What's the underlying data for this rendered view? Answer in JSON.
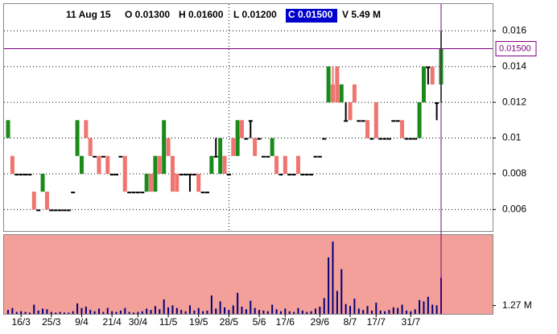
{
  "header": {
    "date": "11 Aug 15",
    "open": "O 0.01300",
    "high": "H 0.01600",
    "low": "L 0.01200",
    "close": "C 0.01500",
    "volume": "V 5.49 M"
  },
  "chart_data": {
    "type": "candlestick",
    "ylim": [
      0.0048,
      0.0175
    ],
    "yticks": [
      0.016,
      0.014,
      0.012,
      0.01,
      0.008,
      0.006
    ],
    "crosshair": {
      "value": 0.015,
      "label": "0.01500"
    },
    "grid": true,
    "up_color": "#1a8a1a",
    "down_color": "#f07470",
    "flat_color": "#000000",
    "xticks": [
      {
        "value": 3,
        "label": "16/3"
      },
      {
        "value": 10,
        "label": "25/3"
      },
      {
        "value": 17,
        "label": "9/4"
      },
      {
        "value": 24,
        "label": "21/4"
      },
      {
        "value": 30,
        "label": "30/4"
      },
      {
        "value": 37,
        "label": "11/5"
      },
      {
        "value": 44,
        "label": "19/5"
      },
      {
        "value": 51,
        "label": "28/5"
      },
      {
        "value": 58,
        "label": "5/6"
      },
      {
        "value": 64,
        "label": "17/6"
      },
      {
        "value": 72,
        "label": "29/6"
      },
      {
        "value": 79,
        "label": "8/7"
      },
      {
        "value": 85,
        "label": "17/7"
      },
      {
        "value": 93,
        "label": "31/7"
      }
    ],
    "open": [
      0.01,
      0.009,
      0.008,
      0.008,
      0.008,
      0.008,
      0.007,
      0.006,
      0.007,
      0.007,
      0.006,
      0.006,
      0.006,
      0.006,
      0.006,
      0.007,
      0.009,
      0.008,
      0.011,
      0.01,
      0.009,
      0.009,
      0.009,
      0.009,
      0.008,
      0.008,
      0.009,
      0.009,
      0.007,
      0.007,
      0.007,
      0.007,
      0.007,
      0.008,
      0.007,
      0.009,
      0.008,
      0.01,
      0.009,
      0.008,
      0.008,
      0.008,
      0.008,
      0.008,
      0.008,
      0.007,
      0.007,
      0.008,
      0.009,
      0.008,
      0.009,
      0.008,
      0.01,
      0.009,
      0.011,
      0.01,
      0.011,
      0.01,
      0.01,
      0.009,
      0.009,
      0.009,
      0.009,
      0.008,
      0.009,
      0.008,
      0.008,
      0.009,
      0.008,
      0.008,
      0.008,
      0.009,
      0.009,
      0.01,
      0.012,
      0.013,
      0.014,
      0.012,
      0.011,
      0.012,
      0.013,
      0.011,
      0.011,
      0.011,
      0.01,
      0.012,
      0.01,
      0.01,
      0.01,
      0.011,
      0.011,
      0.011,
      0.01,
      0.01,
      0.01,
      0.01,
      0.012,
      0.014,
      0.014,
      0.012,
      0.013
    ],
    "high": [
      0.011,
      0.009,
      0.008,
      0.008,
      0.008,
      0.008,
      0.007,
      0.006,
      0.008,
      0.007,
      0.006,
      0.006,
      0.006,
      0.006,
      0.006,
      0.007,
      0.011,
      0.009,
      0.011,
      0.01,
      0.009,
      0.009,
      0.009,
      0.009,
      0.008,
      0.008,
      0.009,
      0.009,
      0.007,
      0.007,
      0.007,
      0.007,
      0.008,
      0.008,
      0.009,
      0.009,
      0.011,
      0.01,
      0.009,
      0.008,
      0.008,
      0.008,
      0.008,
      0.008,
      0.008,
      0.007,
      0.007,
      0.009,
      0.01,
      0.01,
      0.009,
      0.008,
      0.01,
      0.011,
      0.011,
      0.01,
      0.011,
      0.01,
      0.01,
      0.009,
      0.009,
      0.01,
      0.009,
      0.008,
      0.009,
      0.008,
      0.008,
      0.009,
      0.008,
      0.008,
      0.008,
      0.009,
      0.009,
      0.01,
      0.014,
      0.014,
      0.014,
      0.013,
      0.012,
      0.012,
      0.013,
      0.011,
      0.011,
      0.011,
      0.01,
      0.012,
      0.01,
      0.01,
      0.01,
      0.011,
      0.011,
      0.011,
      0.01,
      0.01,
      0.01,
      0.012,
      0.014,
      0.014,
      0.014,
      0.012,
      0.016
    ],
    "low": [
      0.01,
      0.008,
      0.008,
      0.008,
      0.008,
      0.008,
      0.006,
      0.006,
      0.007,
      0.006,
      0.006,
      0.006,
      0.006,
      0.006,
      0.006,
      0.007,
      0.009,
      0.008,
      0.01,
      0.009,
      0.009,
      0.008,
      0.009,
      0.008,
      0.008,
      0.008,
      0.009,
      0.007,
      0.007,
      0.007,
      0.007,
      0.007,
      0.007,
      0.007,
      0.007,
      0.008,
      0.008,
      0.009,
      0.007,
      0.007,
      0.008,
      0.008,
      0.007,
      0.008,
      0.007,
      0.007,
      0.007,
      0.008,
      0.009,
      0.008,
      0.008,
      0.008,
      0.009,
      0.009,
      0.01,
      0.01,
      0.01,
      0.009,
      0.01,
      0.009,
      0.009,
      0.009,
      0.008,
      0.008,
      0.008,
      0.008,
      0.008,
      0.008,
      0.008,
      0.008,
      0.008,
      0.009,
      0.009,
      0.01,
      0.012,
      0.012,
      0.012,
      0.012,
      0.011,
      0.011,
      0.012,
      0.011,
      0.011,
      0.01,
      0.01,
      0.01,
      0.01,
      0.01,
      0.01,
      0.011,
      0.011,
      0.01,
      0.01,
      0.01,
      0.01,
      0.01,
      0.012,
      0.013,
      0.013,
      0.011,
      0.012
    ],
    "close": [
      0.011,
      0.008,
      0.008,
      0.008,
      0.008,
      0.008,
      0.006,
      0.006,
      0.008,
      0.006,
      0.006,
      0.006,
      0.006,
      0.006,
      0.006,
      0.007,
      0.011,
      0.009,
      0.01,
      0.009,
      0.009,
      0.008,
      0.009,
      0.008,
      0.008,
      0.008,
      0.009,
      0.007,
      0.007,
      0.007,
      0.007,
      0.007,
      0.008,
      0.007,
      0.009,
      0.008,
      0.011,
      0.009,
      0.007,
      0.007,
      0.008,
      0.008,
      0.008,
      0.008,
      0.007,
      0.007,
      0.007,
      0.009,
      0.009,
      0.01,
      0.008,
      0.008,
      0.009,
      0.011,
      0.01,
      0.01,
      0.011,
      0.009,
      0.01,
      0.009,
      0.009,
      0.01,
      0.008,
      0.008,
      0.008,
      0.008,
      0.008,
      0.008,
      0.008,
      0.008,
      0.008,
      0.009,
      0.009,
      0.01,
      0.014,
      0.012,
      0.012,
      0.013,
      0.011,
      0.011,
      0.012,
      0.011,
      0.011,
      0.01,
      0.01,
      0.01,
      0.01,
      0.01,
      0.01,
      0.011,
      0.011,
      0.01,
      0.01,
      0.01,
      0.01,
      0.012,
      0.014,
      0.014,
      0.013,
      0.012,
      0.015
    ],
    "volume": {
      "name": "volume",
      "color": "#00007a",
      "ylim": [
        0,
        12
      ],
      "yticks": [
        {
          "value": 1.27,
          "label": "1.27 M"
        }
      ],
      "values": [
        0.6,
        0.9,
        0.3,
        0.4,
        0.3,
        0.2,
        1.4,
        0.5,
        0.8,
        0.7,
        0.3,
        0.2,
        0.3,
        0.2,
        0.2,
        0.4,
        1.6,
        0.9,
        1.1,
        0.6,
        0.4,
        0.8,
        0.3,
        0.9,
        0.4,
        0.3,
        0.5,
        0.9,
        0.3,
        0.2,
        0.3,
        0.4,
        0.8,
        0.6,
        1.2,
        0.7,
        2.2,
        1.0,
        1.3,
        0.9,
        0.6,
        0.4,
        1.3,
        0.5,
        0.9,
        0.4,
        0.5,
        2.8,
        0.8,
        1.9,
        1.0,
        0.6,
        1.3,
        3.2,
        1.1,
        0.7,
        2.0,
        0.9,
        0.6,
        0.5,
        0.4,
        1.4,
        0.7,
        0.4,
        0.8,
        0.4,
        0.3,
        0.9,
        0.5,
        0.3,
        0.4,
        0.8,
        1.1,
        2.4,
        8.6,
        11.0,
        3.5,
        6.8,
        1.5,
        1.2,
        2.3,
        0.8,
        0.6,
        1.2,
        0.5,
        1.7,
        0.5,
        0.4,
        0.6,
        1.0,
        0.9,
        1.4,
        0.5,
        0.4,
        0.7,
        2.1,
        1.9,
        2.6,
        1.4,
        1.3,
        5.49
      ]
    }
  }
}
